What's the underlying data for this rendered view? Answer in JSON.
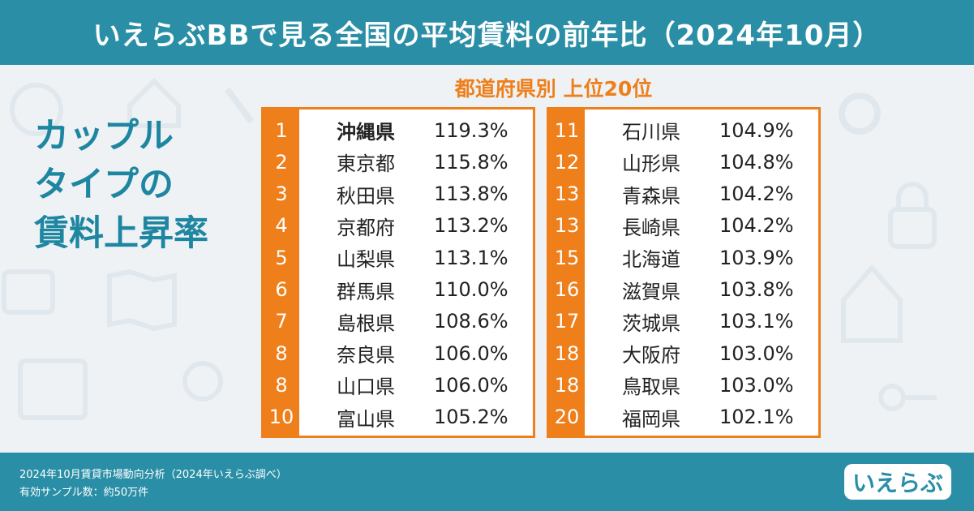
{
  "header": {
    "title": "いえらぶBBで見る全国の平均賃料の前年比（2024年10月）"
  },
  "subtitle": "都道府県別 上位20位",
  "side_title": {
    "line1": "カップル",
    "line2": "タイプの",
    "line3": "賃料上昇率"
  },
  "left_table": [
    {
      "rank": "1",
      "pref": "沖縄県",
      "value": "119.3%"
    },
    {
      "rank": "2",
      "pref": "東京都",
      "value": "115.8%"
    },
    {
      "rank": "3",
      "pref": "秋田県",
      "value": "113.8%"
    },
    {
      "rank": "4",
      "pref": "京都府",
      "value": "113.2%"
    },
    {
      "rank": "5",
      "pref": "山梨県",
      "value": "113.1%"
    },
    {
      "rank": "6",
      "pref": "群馬県",
      "value": "110.0%"
    },
    {
      "rank": "7",
      "pref": "島根県",
      "value": "108.6%"
    },
    {
      "rank": "8",
      "pref": "奈良県",
      "value": "106.0%"
    },
    {
      "rank": "8",
      "pref": "山口県",
      "value": "106.0%"
    },
    {
      "rank": "10",
      "pref": "富山県",
      "value": "105.2%"
    }
  ],
  "right_table": [
    {
      "rank": "11",
      "pref": "石川県",
      "value": "104.9%"
    },
    {
      "rank": "12",
      "pref": "山形県",
      "value": "104.8%"
    },
    {
      "rank": "13",
      "pref": "青森県",
      "value": "104.2%"
    },
    {
      "rank": "13",
      "pref": "長崎県",
      "value": "104.2%"
    },
    {
      "rank": "15",
      "pref": "北海道",
      "value": "103.9%"
    },
    {
      "rank": "16",
      "pref": "滋賀県",
      "value": "103.8%"
    },
    {
      "rank": "17",
      "pref": "茨城県",
      "value": "103.1%"
    },
    {
      "rank": "18",
      "pref": "大阪府",
      "value": "103.0%"
    },
    {
      "rank": "18",
      "pref": "鳥取県",
      "value": "103.0%"
    },
    {
      "rank": "20",
      "pref": "福岡県",
      "value": "102.1%"
    }
  ],
  "footer": {
    "note1": "2024年10月賃貸市場動向分析（2024年いえらぶ調べ）",
    "note2": "有効サンプル数：約50万件"
  },
  "logo": {
    "text": "いえらぶ"
  },
  "colors": {
    "teal": "#2a8fa6",
    "orange": "#ee7f1a",
    "title_teal": "#1e86a1"
  }
}
